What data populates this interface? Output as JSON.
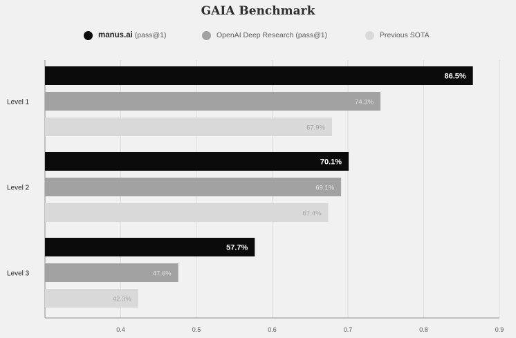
{
  "chart_data": {
    "type": "bar",
    "orientation": "horizontal",
    "title": "GAIA Benchmark",
    "categories": [
      "Level 1",
      "Level 2",
      "Level 3"
    ],
    "series": [
      {
        "name": "manus.ai",
        "suffix": " (pass@1)",
        "color": "#0b0b0b",
        "label_color": "#ffffff",
        "values": [
          0.865,
          0.701,
          0.577
        ],
        "labels": [
          "86.5%",
          "70.1%",
          "57.7%"
        ]
      },
      {
        "name": "OpenAI Deep Research (pass@1)",
        "suffix": "",
        "color": "#a2a2a2",
        "label_color": "#e2e2e2",
        "values": [
          0.743,
          0.691,
          0.476
        ],
        "labels": [
          "74.3%",
          "69.1%",
          "47.6%"
        ]
      },
      {
        "name": "Previous SOTA",
        "suffix": "",
        "color": "#d9d9d9",
        "label_color": "#a6a6a6",
        "values": [
          0.679,
          0.674,
          0.423
        ],
        "labels": [
          "67.9%",
          "67.4%",
          "42.3%"
        ]
      }
    ],
    "xlim": [
      0.3,
      0.9
    ],
    "xticks": [
      0.4,
      0.5,
      0.6,
      0.7,
      0.8,
      0.9
    ],
    "xtick_labels": [
      "0.4",
      "0.5",
      "0.6",
      "0.7",
      "0.8",
      "0.9"
    ],
    "grid": true,
    "legend_position": "top-center"
  }
}
